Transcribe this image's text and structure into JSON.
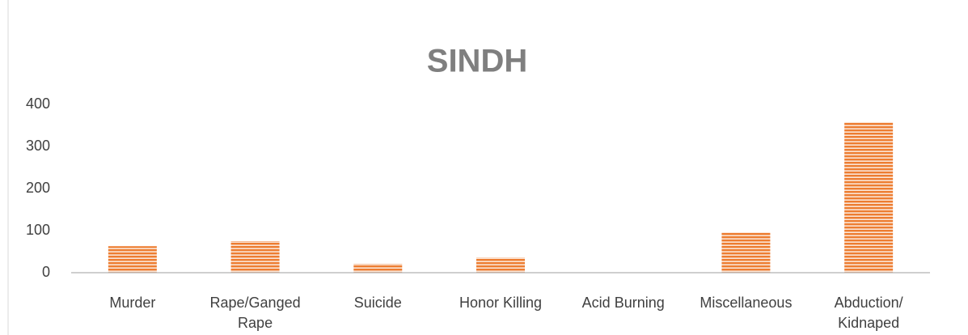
{
  "chart_data": {
    "type": "bar",
    "title": "SINDH",
    "categories": [
      "Murder",
      "Rape/Ganged Rape",
      "Suicide",
      "Honor Killing",
      "Acid Burning",
      "Miscellaneous",
      "Abduction/ Kidnaped"
    ],
    "values": [
      63,
      75,
      21,
      36,
      0,
      96,
      358
    ],
    "color": "#ed7d31",
    "ylim": [
      0,
      400
    ],
    "yticks": [
      0,
      100,
      200,
      300,
      400
    ],
    "grid": false
  }
}
